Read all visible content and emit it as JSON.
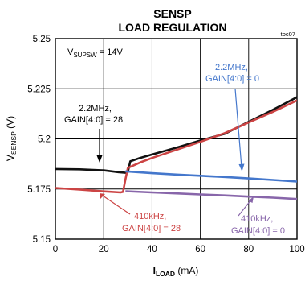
{
  "chart_data": {
    "type": "line",
    "title": "SENSP",
    "subtitle": "LOAD REGULATION",
    "figure_tag": "toc07",
    "xlabel": {
      "main": "I",
      "sub": "LOAD",
      "unit": " (mA)"
    },
    "ylabel": {
      "main": "V",
      "sub": "SENSP",
      "unit": " (V)"
    },
    "xlim": [
      0,
      100
    ],
    "ylim": [
      5.15,
      5.25
    ],
    "x_ticks": [
      0,
      20,
      40,
      60,
      80,
      100
    ],
    "x_tick_labels": [
      "0",
      "20",
      "40",
      "60",
      "80",
      "100"
    ],
    "y_ticks": [
      5.15,
      5.175,
      5.2,
      5.225,
      5.25
    ],
    "y_tick_labels": [
      "5.15",
      "5.175",
      "5.2",
      "5.225",
      "5.25"
    ],
    "grid": true,
    "condition": {
      "main": "V",
      "sub": "SUPSW",
      "rest": " = 14V"
    },
    "series": [
      {
        "name": "2.2MHz, GAIN[4:0] = 28",
        "color": "#111111",
        "x": [
          0,
          10,
          20,
          26,
          29,
          30,
          31,
          35,
          40,
          50,
          60,
          70,
          80,
          90,
          100
        ],
        "y": [
          5.185,
          5.1848,
          5.1843,
          5.1834,
          5.1831,
          5.1835,
          5.1888,
          5.1905,
          5.1922,
          5.1956,
          5.1992,
          5.2025,
          5.2085,
          5.2145,
          5.2208
        ]
      },
      {
        "name": "410kHz, GAIN[4:0] = 28",
        "color": "#cc4444",
        "x": [
          0,
          10,
          20,
          27,
          28,
          29,
          30,
          35,
          40,
          50,
          60,
          70,
          80,
          90,
          100
        ],
        "y": [
          5.1755,
          5.1747,
          5.1738,
          5.1733,
          5.1736,
          5.1798,
          5.1855,
          5.1882,
          5.1905,
          5.1945,
          5.1985,
          5.2028,
          5.2082,
          5.2135,
          5.2192
        ]
      },
      {
        "name": "2.2MHz, GAIN[4:0] = 0",
        "color": "#4477cc",
        "x": [
          29,
          40,
          50,
          60,
          70,
          80,
          90,
          100
        ],
        "y": [
          5.1838,
          5.1829,
          5.1822,
          5.1816,
          5.181,
          5.1803,
          5.1795,
          5.1787
        ]
      },
      {
        "name": "410kHz, GAIN[4:0] = 0",
        "color": "#8866aa",
        "x": [
          29,
          40,
          50,
          60,
          70,
          80,
          90,
          100
        ],
        "y": [
          5.1739,
          5.1733,
          5.1728,
          5.1723,
          5.1718,
          5.1712,
          5.1707,
          5.17
        ]
      }
    ],
    "annotations": [
      {
        "text1": "2.2MHz,",
        "text2": "GAIN[4:0] = 28",
        "color": "#000000"
      },
      {
        "text1": "2.2MHz,",
        "text2": "GAIN[4:0] = 0",
        "color": "#4477cc"
      },
      {
        "text1": "410kHz,",
        "text2": "GAIN[4:0] = 28",
        "color": "#cc4444"
      },
      {
        "text1": "410kHz,",
        "text2": "GAIN[4:0] = 0",
        "color": "#8866aa"
      }
    ]
  }
}
